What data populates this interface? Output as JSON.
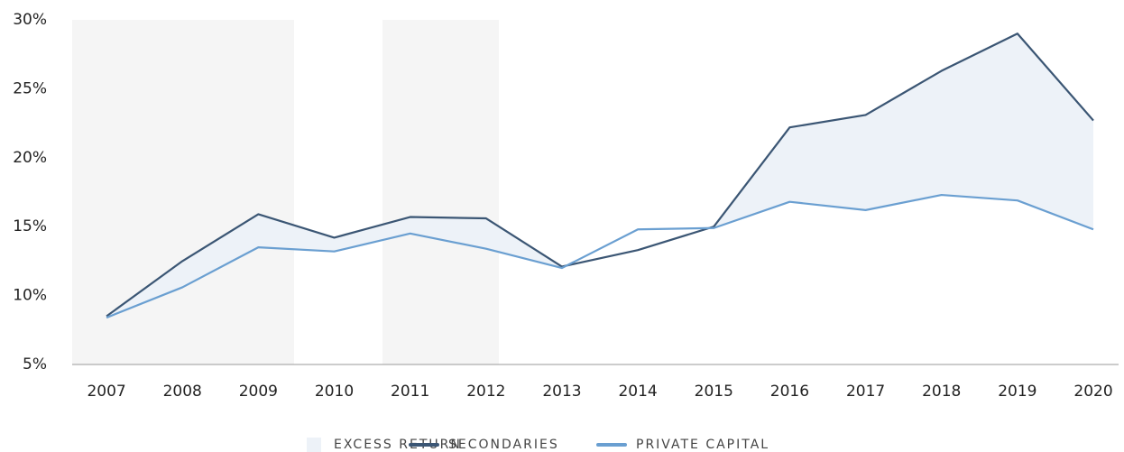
{
  "chart_data": {
    "type": "line",
    "categories": [
      "2007",
      "2008",
      "2009",
      "2010",
      "2011",
      "2012",
      "2013",
      "2014",
      "2015",
      "2016",
      "2017",
      "2018",
      "2019",
      "2020"
    ],
    "series": [
      {
        "name": "SECONDARIES",
        "color": "#3b5674",
        "values": [
          8.5,
          12.5,
          15.9,
          14.2,
          15.7,
          15.6,
          12.1,
          13.3,
          15.0,
          22.2,
          23.1,
          26.3,
          29.0,
          22.7
        ]
      },
      {
        "name": "PRIVATE CAPITAL",
        "color": "#6a9fd1",
        "values": [
          8.4,
          10.6,
          13.5,
          13.2,
          14.5,
          13.4,
          12.0,
          14.8,
          14.9,
          16.8,
          16.2,
          17.3,
          16.9,
          14.8
        ]
      }
    ],
    "area": {
      "name": "EXCESS RETURN",
      "color": "#edf2f8"
    },
    "ylim": [
      5,
      30
    ],
    "yticks": [
      {
        "value": 5,
        "label": "5%"
      },
      {
        "value": 10,
        "label": "10%"
      },
      {
        "value": 15,
        "label": "15%"
      },
      {
        "value": 20,
        "label": "20%"
      },
      {
        "value": 25,
        "label": "25%"
      },
      {
        "value": 30,
        "label": "30%"
      }
    ]
  }
}
